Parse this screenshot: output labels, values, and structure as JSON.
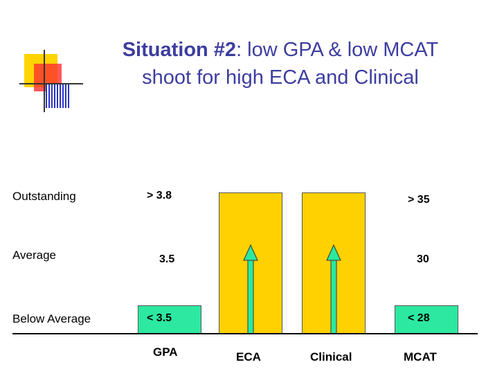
{
  "slide": {
    "title_bold": "Situation #2",
    "title_rest": ": low GPA & low MCAT",
    "title_line2": "shoot for high ECA and Clinical"
  },
  "levels": {
    "outstanding": "Outstanding",
    "average": "Average",
    "below_average": "Below Average"
  },
  "gpa": {
    "label": "GPA",
    "outstanding": "> 3.8",
    "average": "3.5",
    "below": "< 3.5"
  },
  "eca": {
    "label": "ECA"
  },
  "clinical": {
    "label": "Clinical"
  },
  "mcat": {
    "label": "MCAT",
    "outstanding": "> 35",
    "average": "30",
    "below": "< 28"
  },
  "colors": {
    "title": "#3d3da0",
    "bar_yellow": "#ffd100",
    "bar_green": "#2ce8a0"
  }
}
